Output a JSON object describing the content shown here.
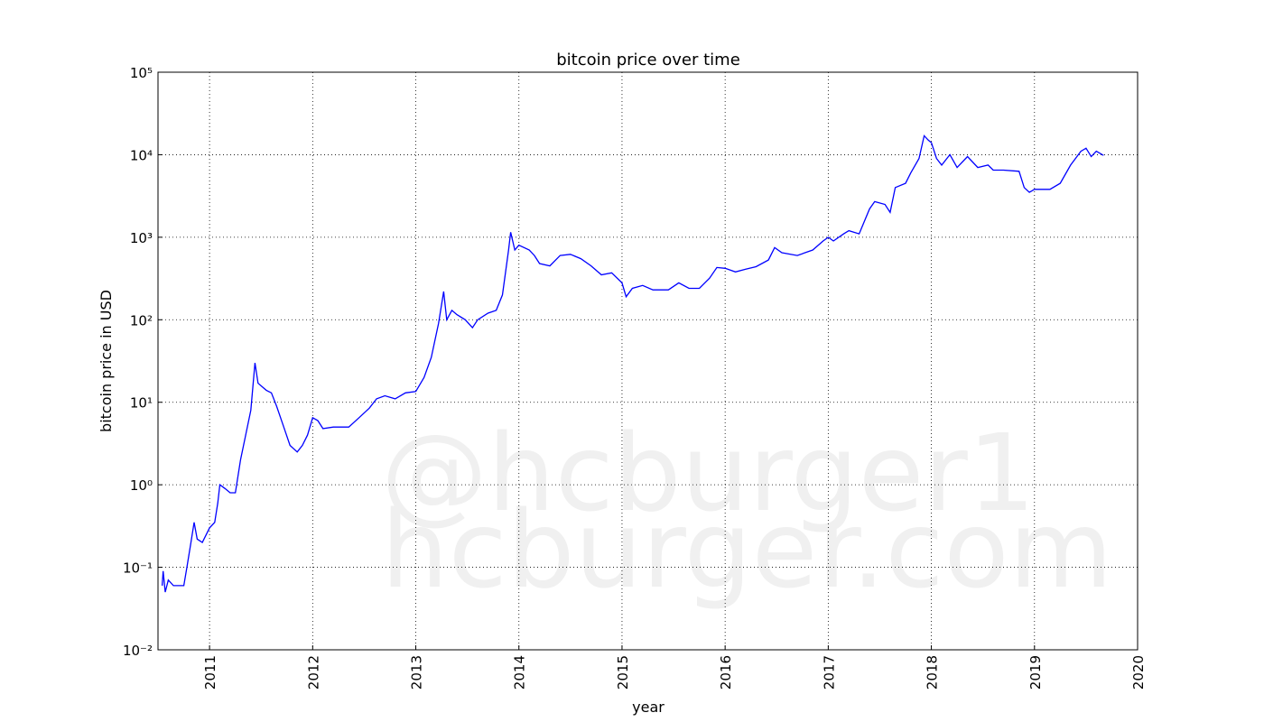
{
  "chart_data": {
    "type": "line",
    "title": "bitcoin price over time",
    "x_label": "year",
    "y_label": "bitcoin price in USD",
    "watermark": [
      "@hcburger1",
      "hcburger.com"
    ],
    "log_y": true,
    "grid": true,
    "xlim": [
      2010.5,
      2020
    ],
    "xticks": [
      2011,
      2012,
      2013,
      2014,
      2015,
      2016,
      2017,
      2018,
      2019,
      2020
    ],
    "ylim": [
      0.01,
      100000
    ],
    "yticks": [
      {
        "value": 0.01,
        "label": "10⁻²"
      },
      {
        "value": 0.1,
        "label": "10⁻¹"
      },
      {
        "value": 1,
        "label": "10⁰"
      },
      {
        "value": 10,
        "label": "10¹"
      },
      {
        "value": 100,
        "label": "10²"
      },
      {
        "value": 1000,
        "label": "10³"
      },
      {
        "value": 10000,
        "label": "10⁴"
      },
      {
        "value": 100000,
        "label": "10⁵"
      }
    ],
    "x": [
      2010.54,
      2010.55,
      2010.57,
      2010.6,
      2010.65,
      2010.75,
      2010.78,
      2010.82,
      2010.85,
      2010.88,
      2010.93,
      2011.0,
      2011.05,
      2011.08,
      2011.1,
      2011.15,
      2011.2,
      2011.25,
      2011.3,
      2011.35,
      2011.4,
      2011.44,
      2011.47,
      2011.55,
      2011.6,
      2011.65,
      2011.72,
      2011.78,
      2011.85,
      2011.9,
      2011.95,
      2012.0,
      2012.05,
      2012.1,
      2012.2,
      2012.35,
      2012.45,
      2012.55,
      2012.62,
      2012.7,
      2012.8,
      2012.9,
      2013.0,
      2013.08,
      2013.15,
      2013.22,
      2013.27,
      2013.3,
      2013.35,
      2013.4,
      2013.48,
      2013.55,
      2013.6,
      2013.7,
      2013.78,
      2013.84,
      2013.9,
      2013.92,
      2013.96,
      2014.0,
      2014.1,
      2014.15,
      2014.2,
      2014.3,
      2014.4,
      2014.5,
      2014.6,
      2014.7,
      2014.8,
      2014.9,
      2015.0,
      2015.04,
      2015.1,
      2015.2,
      2015.3,
      2015.45,
      2015.55,
      2015.65,
      2015.75,
      2015.85,
      2015.92,
      2016.0,
      2016.1,
      2016.2,
      2016.3,
      2016.42,
      2016.48,
      2016.55,
      2016.7,
      2016.85,
      2016.95,
      2017.0,
      2017.05,
      2017.15,
      2017.2,
      2017.3,
      2017.4,
      2017.45,
      2017.55,
      2017.6,
      2017.65,
      2017.75,
      2017.8,
      2017.88,
      2017.93,
      2017.97,
      2018.0,
      2018.05,
      2018.1,
      2018.18,
      2018.25,
      2018.35,
      2018.45,
      2018.55,
      2018.6,
      2018.7,
      2018.85,
      2018.9,
      2018.95,
      2019.0,
      2019.15,
      2019.25,
      2019.35,
      2019.45,
      2019.5,
      2019.55,
      2019.6,
      2019.67
    ],
    "series": [
      {
        "color": "#0000ff",
        "values": [
          0.06,
          0.09,
          0.05,
          0.07,
          0.06,
          0.06,
          0.1,
          0.2,
          0.35,
          0.22,
          0.2,
          0.3,
          0.35,
          0.6,
          1.0,
          0.9,
          0.8,
          0.8,
          2,
          4,
          8,
          30,
          17,
          14,
          13,
          9,
          5,
          3,
          2.5,
          3,
          4,
          6.5,
          6,
          4.8,
          5,
          5,
          6.5,
          8.5,
          11,
          12,
          11,
          13,
          13.5,
          20,
          35,
          90,
          220,
          100,
          130,
          115,
          100,
          80,
          100,
          120,
          130,
          200,
          700,
          1150,
          700,
          800,
          700,
          600,
          480,
          450,
          600,
          620,
          550,
          450,
          350,
          370,
          280,
          190,
          240,
          260,
          230,
          230,
          280,
          240,
          240,
          320,
          430,
          420,
          380,
          410,
          440,
          530,
          750,
          650,
          600,
          700,
          900,
          1000,
          900,
          1100,
          1200,
          1100,
          2200,
          2700,
          2500,
          2000,
          4000,
          4500,
          6000,
          9000,
          17000,
          15000,
          14000,
          9000,
          7500,
          10000,
          7000,
          9500,
          7000,
          7500,
          6500,
          6500,
          6300,
          4000,
          3500,
          3800,
          3800,
          4500,
          7500,
          11000,
          12000,
          9500,
          11000,
          9800
        ]
      }
    ]
  }
}
